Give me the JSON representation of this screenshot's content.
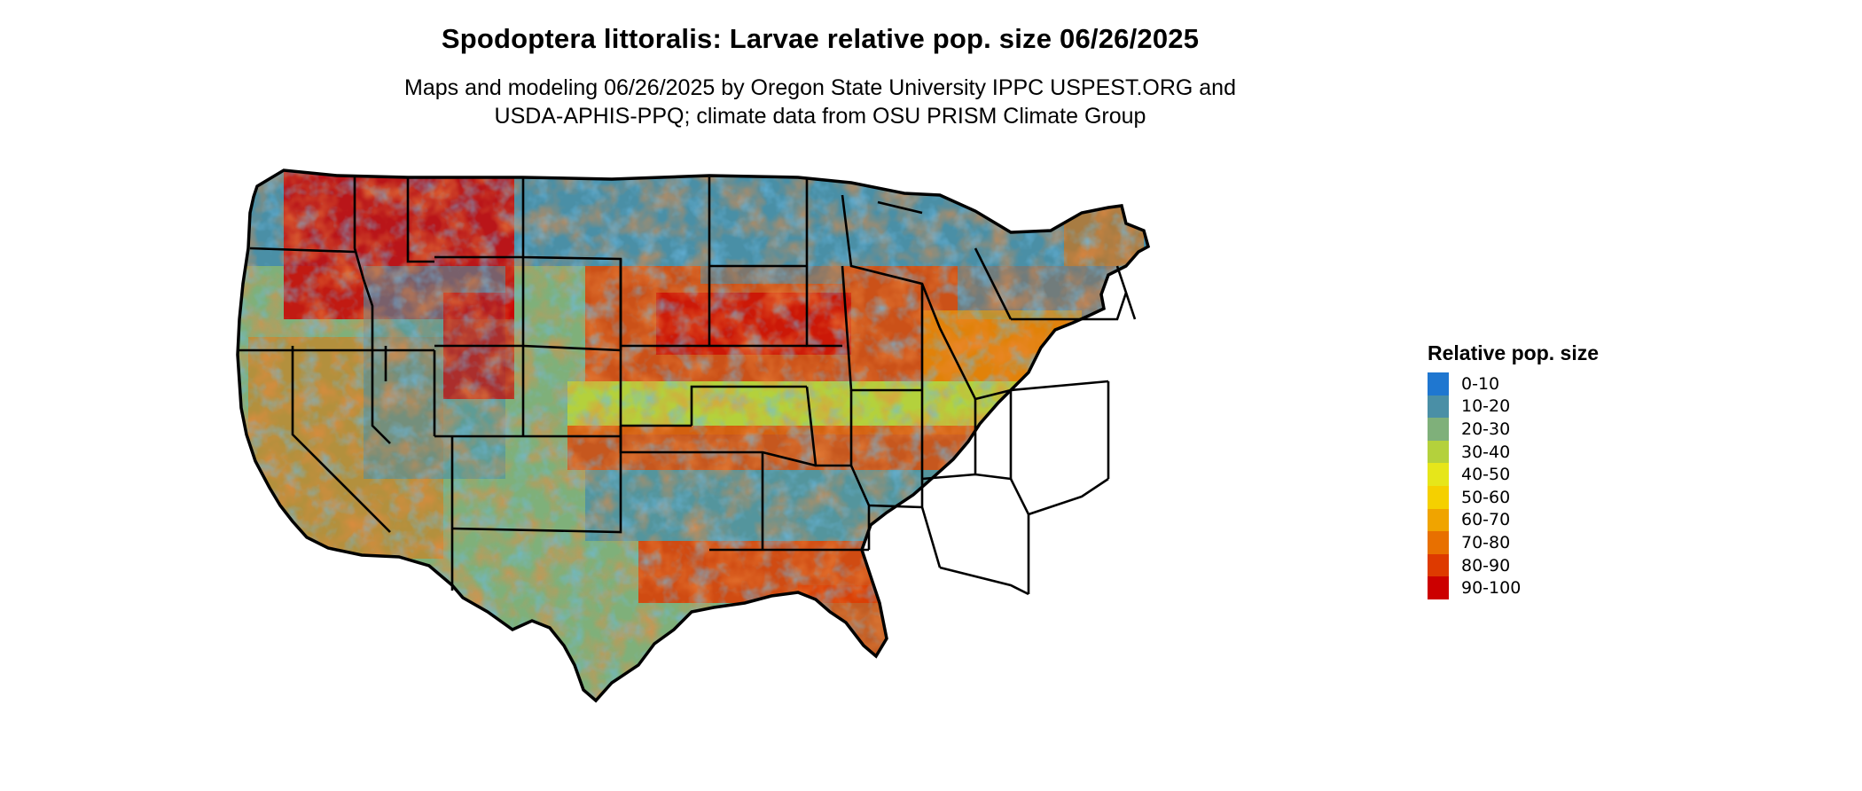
{
  "map": {
    "title": "Spodoptera littoralis: Larvae relative pop. size 06/26/2025",
    "subtitle_line1": "Maps and modeling 06/26/2025 by Oregon State University IPPC USPEST.ORG and",
    "subtitle_line2": "USDA-APHIS-PPQ; climate data from OSU PRISM Climate Group",
    "region": "Contiguous United States",
    "boundaries": "state outlines"
  },
  "legend": {
    "title": "Relative pop. size",
    "items": [
      {
        "label": "0-10",
        "color": "#1f77d0"
      },
      {
        "label": "10-20",
        "color": "#4a8fa6"
      },
      {
        "label": "20-30",
        "color": "#7fb07a"
      },
      {
        "label": "30-40",
        "color": "#b4d13c"
      },
      {
        "label": "40-50",
        "color": "#e6e61a"
      },
      {
        "label": "50-60",
        "color": "#f5d000"
      },
      {
        "label": "60-70",
        "color": "#f0a400"
      },
      {
        "label": "70-80",
        "color": "#e87000"
      },
      {
        "label": "80-90",
        "color": "#de3a00"
      },
      {
        "label": "90-100",
        "color": "#cc0000"
      }
    ]
  }
}
